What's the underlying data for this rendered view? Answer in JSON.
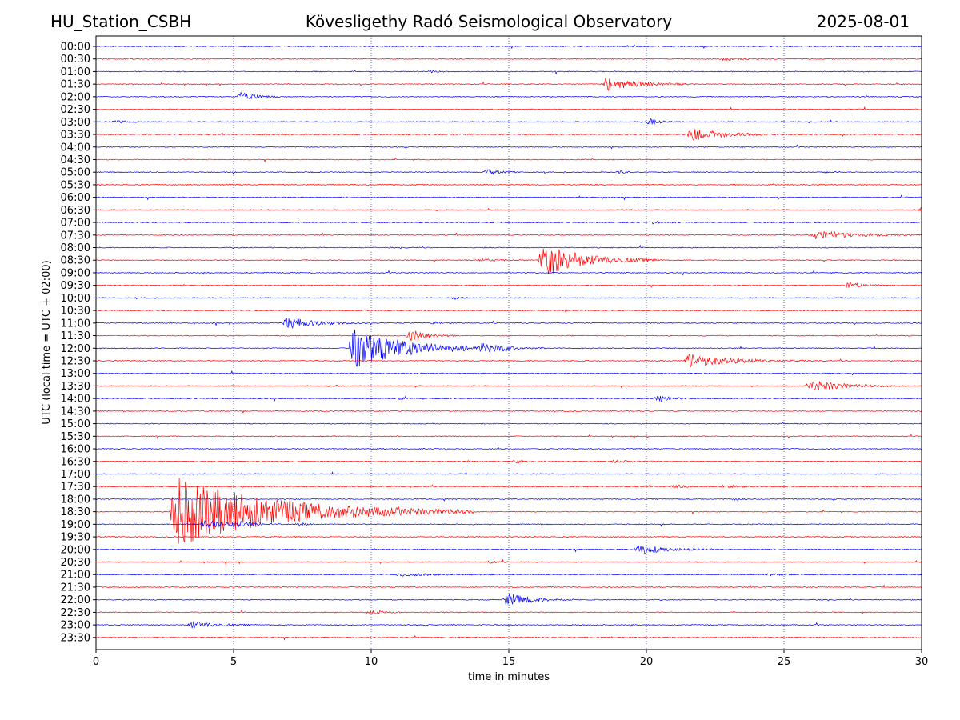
{
  "header": {
    "station": "HU_Station_CSBH",
    "observatory": "Kövesligethy Radó Seismological Observatory",
    "date": "2025-08-01"
  },
  "colors": {
    "odd_trace": "#0000ff",
    "even_trace": "#ff0000",
    "axes": "#000000",
    "grid": "#000080"
  },
  "chart_data": {
    "type": "line",
    "chart_kind": "helicorder",
    "xlabel": "time in minutes",
    "ylabel": "UTC (local time = UTC + 02:00)",
    "xlim": [
      0,
      30
    ],
    "xticks": [
      0,
      5,
      10,
      15,
      20,
      25,
      30
    ],
    "vertical_grid_at": [
      5,
      10,
      15,
      20,
      25
    ],
    "grid": "vertical dotted",
    "row_labels": [
      "00:00",
      "00:30",
      "01:00",
      "01:30",
      "02:00",
      "02:30",
      "03:00",
      "03:30",
      "04:00",
      "04:30",
      "05:00",
      "05:30",
      "06:00",
      "06:30",
      "07:00",
      "07:30",
      "08:00",
      "08:30",
      "09:00",
      "09:30",
      "10:00",
      "10:30",
      "11:00",
      "11:30",
      "12:00",
      "12:30",
      "13:00",
      "13:30",
      "14:00",
      "14:30",
      "15:00",
      "15:30",
      "16:00",
      "16:30",
      "17:00",
      "17:30",
      "18:00",
      "18:30",
      "19:00",
      "19:30",
      "20:00",
      "20:30",
      "21:00",
      "21:30",
      "22:00",
      "22:30",
      "23:00",
      "23:30"
    ],
    "row_colors": "alternating blue (rows starting on the hour) and red (rows starting on the half hour)",
    "events": [
      {
        "row": "00:30",
        "minute": 22.7,
        "amplitude": 0.25,
        "duration": 1.5
      },
      {
        "row": "01:00",
        "minute": 12.0,
        "amplitude": 0.12,
        "duration": 0.8
      },
      {
        "row": "01:30",
        "minute": 18.4,
        "amplitude": 1.0,
        "duration": 3.2
      },
      {
        "row": "02:00",
        "minute": 5.15,
        "amplitude": 0.75,
        "duration": 1.5
      },
      {
        "row": "03:00",
        "minute": 0.6,
        "amplitude": 0.2,
        "duration": 1.2
      },
      {
        "row": "03:00",
        "minute": 20.0,
        "amplitude": 0.45,
        "duration": 1.0
      },
      {
        "row": "03:30",
        "minute": 21.5,
        "amplitude": 0.9,
        "duration": 3.5
      },
      {
        "row": "05:00",
        "minute": 14.1,
        "amplitude": 0.35,
        "duration": 1.3
      },
      {
        "row": "05:00",
        "minute": 18.9,
        "amplitude": 0.15,
        "duration": 0.8
      },
      {
        "row": "05:00",
        "minute": 26.4,
        "amplitude": 0.12,
        "duration": 0.8
      },
      {
        "row": "06:30",
        "minute": 29.9,
        "amplitude": 0.5,
        "duration": 0.3
      },
      {
        "row": "07:00",
        "minute": 20.1,
        "amplitude": 0.18,
        "duration": 1.2
      },
      {
        "row": "07:30",
        "minute": 26.0,
        "amplitude": 0.65,
        "duration": 4.0
      },
      {
        "row": "08:30",
        "minute": 13.8,
        "amplitude": 0.2,
        "duration": 2.0
      },
      {
        "row": "08:30",
        "minute": 16.1,
        "amplitude": 2.3,
        "duration": 4.5
      },
      {
        "row": "09:30",
        "minute": 27.2,
        "amplitude": 0.45,
        "duration": 1.5
      },
      {
        "row": "10:00",
        "minute": 12.9,
        "amplitude": 0.18,
        "duration": 0.8
      },
      {
        "row": "11:00",
        "minute": 6.8,
        "amplitude": 0.85,
        "duration": 3.0
      },
      {
        "row": "11:00",
        "minute": 12.1,
        "amplitude": 0.18,
        "duration": 1.0
      },
      {
        "row": "11:30",
        "minute": 11.3,
        "amplitude": 0.85,
        "duration": 1.8
      },
      {
        "row": "12:00",
        "minute": 9.2,
        "amplitude": 2.8,
        "duration": 6.0
      },
      {
        "row": "12:00",
        "minute": 13.9,
        "amplitude": 0.5,
        "duration": 2.5
      },
      {
        "row": "12:30",
        "minute": 21.4,
        "amplitude": 0.95,
        "duration": 4.5
      },
      {
        "row": "13:30",
        "minute": 8.4,
        "amplitude": 0.12,
        "duration": 1.0
      },
      {
        "row": "13:30",
        "minute": 25.9,
        "amplitude": 0.75,
        "duration": 3.5
      },
      {
        "row": "14:00",
        "minute": 10.9,
        "amplitude": 0.12,
        "duration": 0.8
      },
      {
        "row": "14:00",
        "minute": 20.3,
        "amplitude": 0.45,
        "duration": 1.5
      },
      {
        "row": "16:30",
        "minute": 15.1,
        "amplitude": 0.2,
        "duration": 1.3
      },
      {
        "row": "16:30",
        "minute": 18.7,
        "amplitude": 0.2,
        "duration": 1.8
      },
      {
        "row": "17:30",
        "minute": 20.9,
        "amplitude": 0.3,
        "duration": 1.0
      },
      {
        "row": "17:30",
        "minute": 22.7,
        "amplitude": 0.22,
        "duration": 1.5
      },
      {
        "row": "18:00",
        "minute": 23.1,
        "amplitude": 0.12,
        "duration": 0.6
      },
      {
        "row": "18:30",
        "minute": 2.7,
        "amplitude": 5.0,
        "duration": 11.0
      },
      {
        "row": "19:00",
        "minute": 3.8,
        "amplitude": 0.5,
        "duration": 3.0
      },
      {
        "row": "19:00",
        "minute": 4.9,
        "amplitude": 0.35,
        "duration": 1.5
      },
      {
        "row": "19:00",
        "minute": 7.2,
        "amplitude": 0.22,
        "duration": 1.0
      },
      {
        "row": "20:00",
        "minute": 19.6,
        "amplitude": 0.7,
        "duration": 2.8
      },
      {
        "row": "20:30",
        "minute": 14.2,
        "amplitude": 0.22,
        "duration": 0.8
      },
      {
        "row": "21:00",
        "minute": 10.9,
        "amplitude": 0.2,
        "duration": 4.0
      },
      {
        "row": "21:00",
        "minute": 24.3,
        "amplitude": 0.15,
        "duration": 1.5
      },
      {
        "row": "22:00",
        "minute": 14.8,
        "amplitude": 0.9,
        "duration": 2.6
      },
      {
        "row": "22:30",
        "minute": 9.8,
        "amplitude": 0.32,
        "duration": 1.5
      },
      {
        "row": "23:00",
        "minute": 3.35,
        "amplitude": 0.55,
        "duration": 2.3
      }
    ]
  }
}
